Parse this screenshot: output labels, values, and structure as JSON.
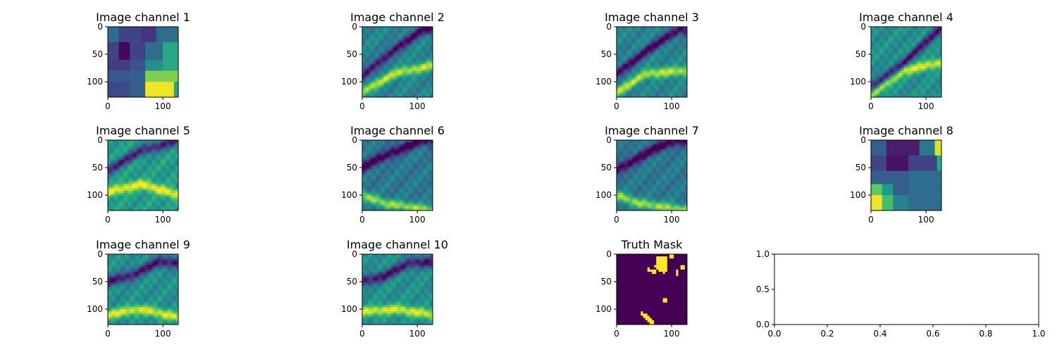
{
  "chart_data": [
    {
      "type": "heatmap",
      "title": "Image channel 1",
      "colormap": "viridis",
      "image_size": [
        128,
        128
      ],
      "xlim": [
        0,
        128
      ],
      "ylim": [
        128,
        0
      ],
      "xticks": [
        0,
        100
      ],
      "yticks": [
        0,
        50,
        100
      ],
      "description_blocks": [
        {
          "x": [
            0,
            20
          ],
          "y": [
            0,
            30
          ],
          "v": 0.35
        },
        {
          "x": [
            20,
            60
          ],
          "y": [
            0,
            30
          ],
          "v": 0.2
        },
        {
          "x": [
            60,
            90
          ],
          "y": [
            0,
            30
          ],
          "v": 0.15
        },
        {
          "x": [
            90,
            128
          ],
          "y": [
            0,
            30
          ],
          "v": 0.35
        },
        {
          "x": [
            0,
            20
          ],
          "y": [
            30,
            60
          ],
          "v": 0.2
        },
        {
          "x": [
            20,
            40
          ],
          "y": [
            30,
            60
          ],
          "v": 0.02
        },
        {
          "x": [
            40,
            70
          ],
          "y": [
            30,
            60
          ],
          "v": 0.2
        },
        {
          "x": [
            70,
            100
          ],
          "y": [
            30,
            60
          ],
          "v": 0.35
        },
        {
          "x": [
            100,
            128
          ],
          "y": [
            30,
            60
          ],
          "v": 0.6
        },
        {
          "x": [
            0,
            40
          ],
          "y": [
            60,
            80
          ],
          "v": 0.18
        },
        {
          "x": [
            40,
            70
          ],
          "y": [
            60,
            80
          ],
          "v": 0.25
        },
        {
          "x": [
            70,
            100
          ],
          "y": [
            60,
            80
          ],
          "v": 0.5
        },
        {
          "x": [
            100,
            128
          ],
          "y": [
            60,
            80
          ],
          "v": 0.6
        },
        {
          "x": [
            0,
            40
          ],
          "y": [
            80,
            100
          ],
          "v": 0.28
        },
        {
          "x": [
            40,
            70
          ],
          "y": [
            80,
            100
          ],
          "v": 0.3
        },
        {
          "x": [
            70,
            128
          ],
          "y": [
            80,
            100
          ],
          "v": 0.8
        },
        {
          "x": [
            0,
            40
          ],
          "y": [
            100,
            128
          ],
          "v": 0.22
        },
        {
          "x": [
            40,
            70
          ],
          "y": [
            100,
            128
          ],
          "v": 0.3
        },
        {
          "x": [
            70,
            120
          ],
          "y": [
            100,
            128
          ],
          "v": 0.98
        },
        {
          "x": [
            120,
            128
          ],
          "y": [
            100,
            128
          ],
          "v": 0.6
        }
      ]
    },
    {
      "type": "heatmap",
      "title": "Image channel 2",
      "colormap": "viridis",
      "image_size": [
        128,
        128
      ],
      "xlim": [
        0,
        128
      ],
      "ylim": [
        128,
        0
      ],
      "xticks": [
        0,
        100
      ],
      "yticks": [
        0,
        50,
        100
      ],
      "features": {
        "low_band": [
          [
            0,
            90
          ],
          [
            60,
            40
          ],
          [
            110,
            5
          ]
        ],
        "high_band": [
          [
            0,
            118
          ],
          [
            60,
            85
          ],
          [
            128,
            70
          ]
        ],
        "base": 0.45
      }
    },
    {
      "type": "heatmap",
      "title": "Image channel 3",
      "colormap": "viridis",
      "image_size": [
        128,
        128
      ],
      "xlim": [
        0,
        128
      ],
      "ylim": [
        128,
        0
      ],
      "xticks": [
        0,
        100
      ],
      "yticks": [
        0,
        50,
        100
      ],
      "features": {
        "low_band": [
          [
            0,
            85
          ],
          [
            60,
            40
          ],
          [
            115,
            5
          ]
        ],
        "high_band": [
          [
            0,
            120
          ],
          [
            55,
            85
          ],
          [
            128,
            80
          ]
        ],
        "base": 0.45
      }
    },
    {
      "type": "heatmap",
      "title": "Image channel 4",
      "colormap": "viridis",
      "image_size": [
        128,
        128
      ],
      "xlim": [
        0,
        128
      ],
      "ylim": [
        128,
        0
      ],
      "xticks": [
        0,
        100
      ],
      "yticks": [
        0,
        50,
        100
      ],
      "features": {
        "low_band": [
          [
            0,
            110
          ],
          [
            60,
            65
          ],
          [
            128,
            0
          ]
        ],
        "high_band": [
          [
            0,
            125
          ],
          [
            60,
            80
          ],
          [
            128,
            65
          ]
        ],
        "base": 0.5
      }
    },
    {
      "type": "heatmap",
      "title": "Image channel 5",
      "colormap": "viridis",
      "image_size": [
        128,
        128
      ],
      "xlim": [
        0,
        128
      ],
      "ylim": [
        128,
        0
      ],
      "xticks": [
        0,
        100
      ],
      "yticks": [
        0,
        50,
        100
      ],
      "features": {
        "low_band": [
          [
            0,
            55
          ],
          [
            60,
            20
          ],
          [
            128,
            0
          ]
        ],
        "high_band": [
          [
            0,
            95
          ],
          [
            60,
            80
          ],
          [
            128,
            100
          ]
        ],
        "base": 0.55
      }
    },
    {
      "type": "heatmap",
      "title": "Image channel 6",
      "colormap": "viridis",
      "image_size": [
        128,
        128
      ],
      "xlim": [
        0,
        128
      ],
      "ylim": [
        128,
        0
      ],
      "xticks": [
        0,
        100
      ],
      "yticks": [
        0,
        50,
        100
      ],
      "features": {
        "low_band": [
          [
            0,
            50
          ],
          [
            60,
            20
          ],
          [
            110,
            0
          ]
        ],
        "high_band": [
          [
            0,
            100
          ],
          [
            40,
            115
          ],
          [
            128,
            128
          ]
        ],
        "base": 0.4
      }
    },
    {
      "type": "heatmap",
      "title": "Image channel 7",
      "colormap": "viridis",
      "image_size": [
        128,
        128
      ],
      "xlim": [
        0,
        128
      ],
      "ylim": [
        128,
        0
      ],
      "xticks": [
        0,
        100
      ],
      "yticks": [
        0,
        50,
        100
      ],
      "features": {
        "low_band": [
          [
            0,
            55
          ],
          [
            60,
            20
          ],
          [
            110,
            0
          ]
        ],
        "high_band": [
          [
            0,
            100
          ],
          [
            40,
            115
          ],
          [
            128,
            128
          ]
        ],
        "base": 0.4
      }
    },
    {
      "type": "heatmap",
      "title": "Image channel 8",
      "colormap": "viridis",
      "image_size": [
        128,
        128
      ],
      "xlim": [
        0,
        128
      ],
      "ylim": [
        128,
        0
      ],
      "xticks": [
        0,
        100
      ],
      "yticks": [
        0,
        50,
        100
      ],
      "description_blocks": [
        {
          "x": [
            0,
            30
          ],
          "y": [
            0,
            30
          ],
          "v": 0.3
        },
        {
          "x": [
            30,
            90
          ],
          "y": [
            0,
            30
          ],
          "v": 0.08
        },
        {
          "x": [
            90,
            118
          ],
          "y": [
            0,
            30
          ],
          "v": 0.4
        },
        {
          "x": [
            118,
            128
          ],
          "y": [
            0,
            30
          ],
          "v": 0.95
        },
        {
          "x": [
            0,
            30
          ],
          "y": [
            30,
            55
          ],
          "v": 0.2
        },
        {
          "x": [
            30,
            70
          ],
          "y": [
            30,
            55
          ],
          "v": 0.05
        },
        {
          "x": [
            70,
            120
          ],
          "y": [
            30,
            55
          ],
          "v": 0.2
        },
        {
          "x": [
            120,
            128
          ],
          "y": [
            30,
            55
          ],
          "v": 0.6
        },
        {
          "x": [
            0,
            30
          ],
          "y": [
            55,
            80
          ],
          "v": 0.3
        },
        {
          "x": [
            30,
            70
          ],
          "y": [
            55,
            80
          ],
          "v": 0.3
        },
        {
          "x": [
            70,
            120
          ],
          "y": [
            55,
            80
          ],
          "v": 0.35
        },
        {
          "x": [
            120,
            128
          ],
          "y": [
            55,
            80
          ],
          "v": 0.35
        },
        {
          "x": [
            0,
            20
          ],
          "y": [
            80,
            100
          ],
          "v": 0.75
        },
        {
          "x": [
            20,
            40
          ],
          "y": [
            80,
            100
          ],
          "v": 0.55
        },
        {
          "x": [
            40,
            70
          ],
          "y": [
            80,
            100
          ],
          "v": 0.3
        },
        {
          "x": [
            70,
            128
          ],
          "y": [
            80,
            100
          ],
          "v": 0.35
        },
        {
          "x": [
            0,
            20
          ],
          "y": [
            100,
            128
          ],
          "v": 0.98
        },
        {
          "x": [
            20,
            40
          ],
          "y": [
            100,
            128
          ],
          "v": 0.7
        },
        {
          "x": [
            40,
            70
          ],
          "y": [
            100,
            128
          ],
          "v": 0.45
        },
        {
          "x": [
            70,
            128
          ],
          "y": [
            100,
            128
          ],
          "v": 0.35
        }
      ]
    },
    {
      "type": "heatmap",
      "title": "Image channel 9",
      "colormap": "viridis",
      "image_size": [
        128,
        128
      ],
      "xlim": [
        0,
        128
      ],
      "ylim": [
        128,
        0
      ],
      "xticks": [
        0,
        100
      ],
      "yticks": [
        0,
        50,
        100
      ],
      "features": {
        "low_band": [
          [
            0,
            50
          ],
          [
            40,
            40
          ],
          [
            90,
            15
          ]
        ],
        "high_band": [
          [
            0,
            110
          ],
          [
            60,
            100
          ],
          [
            128,
            115
          ]
        ],
        "base": 0.5
      }
    },
    {
      "type": "heatmap",
      "title": "Image channel 10",
      "colormap": "viridis",
      "image_size": [
        128,
        128
      ],
      "xlim": [
        0,
        128
      ],
      "ylim": [
        128,
        0
      ],
      "xticks": [
        0,
        100
      ],
      "yticks": [
        0,
        50,
        100
      ],
      "features": {
        "low_band": [
          [
            0,
            50
          ],
          [
            40,
            40
          ],
          [
            90,
            15
          ]
        ],
        "high_band": [
          [
            0,
            105
          ],
          [
            60,
            100
          ],
          [
            128,
            110
          ]
        ],
        "base": 0.5
      }
    },
    {
      "type": "heatmap",
      "title": "Truth Mask",
      "colormap": "viridis",
      "image_size": [
        128,
        128
      ],
      "xlim": [
        0,
        128
      ],
      "ylim": [
        128,
        0
      ],
      "xticks": [
        0,
        100
      ],
      "yticks": [
        0,
        50,
        100
      ],
      "binary_regions": [
        {
          "poly": [
            [
              72,
              5
            ],
            [
              90,
              5
            ],
            [
              92,
              30
            ],
            [
              88,
              35
            ],
            [
              75,
              30
            ],
            [
              70,
              22
            ]
          ],
          "v": 1
        },
        {
          "poly": [
            [
              58,
              25
            ],
            [
              70,
              28
            ],
            [
              72,
              35
            ],
            [
              56,
              33
            ]
          ],
          "v": 1
        },
        {
          "poly": [
            [
              96,
              0
            ],
            [
              104,
              0
            ],
            [
              104,
              8
            ],
            [
              96,
              8
            ]
          ],
          "v": 1
        },
        {
          "poly": [
            [
              116,
              20
            ],
            [
              124,
              20
            ],
            [
              124,
              30
            ],
            [
              116,
              30
            ]
          ],
          "v": 1
        },
        {
          "poly": [
            [
              110,
              30
            ],
            [
              114,
              30
            ],
            [
              114,
              40
            ],
            [
              110,
              40
            ]
          ],
          "v": 1
        },
        {
          "poly": [
            [
              86,
              80
            ],
            [
              94,
              80
            ],
            [
              94,
              88
            ],
            [
              86,
              88
            ]
          ],
          "v": 1
        },
        {
          "poly": [
            [
              44,
              103
            ],
            [
              52,
              108
            ],
            [
              66,
              120
            ],
            [
              70,
              128
            ],
            [
              60,
              128
            ],
            [
              48,
              115
            ],
            [
              44,
              108
            ]
          ],
          "v": 1
        }
      ]
    },
    {
      "type": "line",
      "title": "",
      "series": [],
      "xlim": [
        0.0,
        1.0
      ],
      "ylim": [
        0.0,
        1.0
      ],
      "xticks": [
        "0.0",
        "0.2",
        "0.4",
        "0.6",
        "0.8",
        "1.0"
      ],
      "yticks": [
        "0.0",
        "0.5",
        "1.0"
      ]
    }
  ]
}
